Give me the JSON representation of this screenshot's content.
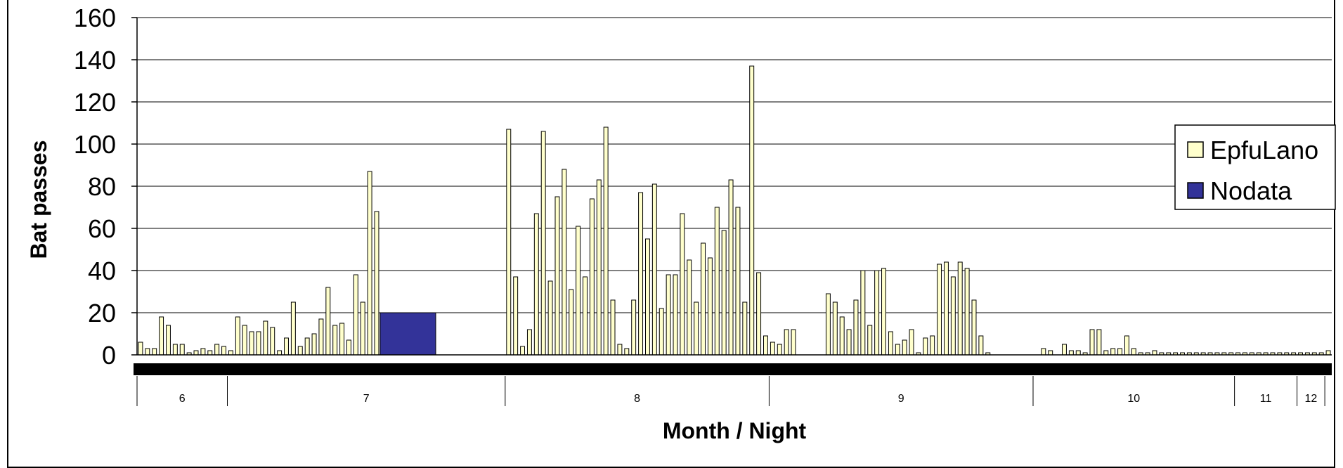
{
  "chart_data": {
    "type": "bar",
    "title": "",
    "xlabel": "Month / Night",
    "ylabel": "Bat passes",
    "ylim": [
      0,
      160
    ],
    "yticks": [
      "0",
      "20",
      "40",
      "60",
      "80",
      "100",
      "120",
      "140",
      "160"
    ],
    "grid": true,
    "legend_position": "right",
    "months": [
      {
        "label": "6",
        "nights": 13
      },
      {
        "label": "7",
        "nights": 40
      },
      {
        "label": "8",
        "nights": 38
      },
      {
        "label": "9",
        "nights": 38
      },
      {
        "label": "10",
        "nights": 29
      },
      {
        "label": "11",
        "nights": 9
      },
      {
        "label": "12",
        "nights": 4
      }
    ],
    "series": [
      {
        "name": "EpfuLano",
        "color": "#FFFFCC",
        "values": [
          6,
          3,
          3,
          18,
          14,
          5,
          5,
          1,
          2,
          3,
          2,
          5,
          4,
          2,
          18,
          14,
          11,
          11,
          16,
          13,
          2,
          8,
          25,
          4,
          8,
          10,
          17,
          32,
          14,
          15,
          7,
          38,
          25,
          87,
          68,
          0,
          0,
          0,
          0,
          0,
          0,
          0,
          0,
          0,
          0,
          0,
          0,
          0,
          0,
          0,
          0,
          0,
          0,
          107,
          37,
          4,
          12,
          67,
          106,
          35,
          75,
          88,
          31,
          61,
          37,
          74,
          83,
          108,
          26,
          5,
          3,
          26,
          77,
          55,
          81,
          22,
          38,
          38,
          67,
          45,
          25,
          53,
          46,
          70,
          59,
          83,
          70,
          25,
          137,
          39,
          9,
          6,
          5,
          12,
          12,
          0,
          0,
          0,
          0,
          29,
          25,
          18,
          12,
          26,
          40,
          14,
          40,
          41,
          11,
          5,
          7,
          12,
          1,
          8,
          9,
          43,
          44,
          37,
          44,
          41,
          26,
          9,
          1,
          0,
          0,
          0,
          0,
          0,
          0,
          0,
          3,
          2,
          0,
          5,
          2,
          2,
          1,
          12,
          12,
          2,
          3,
          3,
          9,
          3,
          1,
          1,
          2,
          1,
          1,
          1,
          1,
          1,
          1,
          1,
          1,
          1,
          1,
          1,
          1,
          1,
          1,
          1,
          1,
          1,
          1,
          1,
          1,
          1,
          1,
          1,
          1,
          2
        ]
      },
      {
        "name": "Nodata",
        "color": "#333399",
        "block": {
          "start_index": 35,
          "count": 8,
          "value": 20
        }
      }
    ]
  }
}
